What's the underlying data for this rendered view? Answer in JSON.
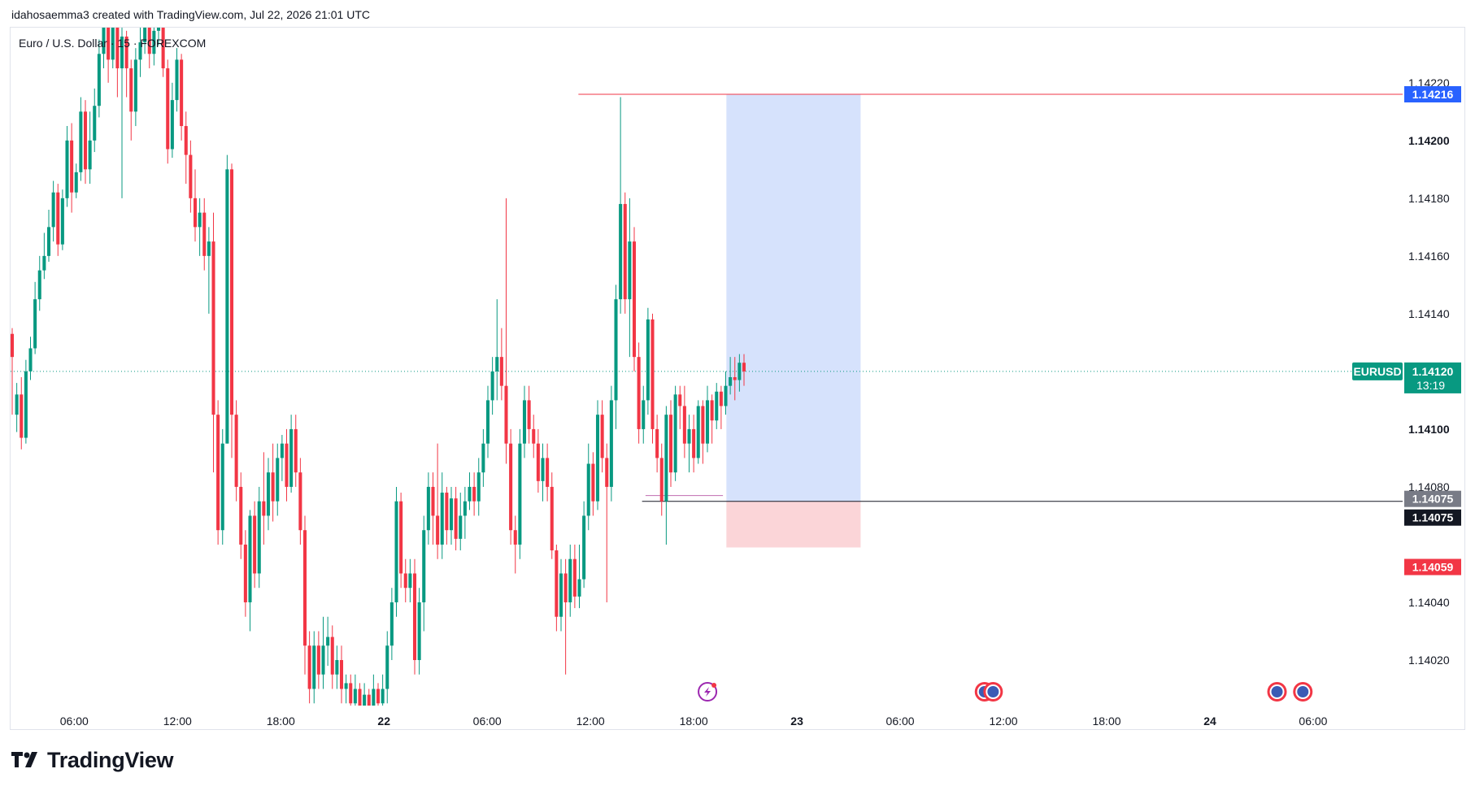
{
  "header": {
    "attribution": "idahosaemma3 created with TradingView.com, Jul 22, 2026 21:01 UTC"
  },
  "footer": {
    "brand": "TradingView"
  },
  "colors": {
    "up": "#089981",
    "down": "#f23645",
    "accent": "#2962ff",
    "stop": "#f23645",
    "stop_fill": "#fbd5d8",
    "target_fill": "#d6e2fc",
    "grey_label": "#787b86",
    "dark_label": "#131722"
  },
  "chart_data": {
    "type": "candlestick",
    "title": "Euro / U.S. Dollar · 15 · FOREXCOM",
    "symbol": "EURUSD",
    "interval": "15",
    "exchange": "FOREXCOM",
    "ylim": [
      1.14005,
      1.14225
    ],
    "y_ticks": [
      "1.14220",
      "1.14200",
      "1.14180",
      "1.14160",
      "1.14140",
      "1.14100",
      "1.14080",
      "1.14040",
      "1.14020"
    ],
    "x_ticks": [
      "06:00",
      "12:00",
      "18:00",
      "22",
      "06:00",
      "12:00",
      "18:00",
      "23",
      "06:00",
      "12:00",
      "18:00",
      "24",
      "06:00"
    ],
    "x_tick_hours": [
      6,
      12,
      18,
      24,
      30,
      36,
      42,
      48,
      54,
      60,
      66,
      72,
      78
    ],
    "x_tick_bold": [
      false,
      false,
      false,
      true,
      false,
      false,
      false,
      true,
      false,
      false,
      false,
      true,
      false
    ],
    "time_range_hours": [
      2.3,
      83.2
    ],
    "current_price": {
      "label": "EURUSD",
      "value": "1.14120",
      "countdown": "13:19",
      "price": 1.1412
    },
    "price_labels": [
      {
        "value": "1.14216",
        "price": 1.14216,
        "color": "#2962ff"
      },
      {
        "value": "1.14075",
        "price": 1.14075,
        "color": "#787b86"
      },
      {
        "value": "1.14075",
        "price": 1.14075,
        "color": "#131722"
      },
      {
        "value": "1.14059",
        "price": 1.14059,
        "color": "#f23645"
      }
    ],
    "levels": [
      {
        "price": 1.14216,
        "from_hour": 35.3,
        "color": "#f23645"
      },
      {
        "price": 1.14075,
        "from_hour": 39.0,
        "color": "#131722"
      },
      {
        "price": 1.14077,
        "from_hour": 39.2,
        "to_hour": 43.7,
        "color": "#c06bb0"
      }
    ],
    "position": {
      "type": "long",
      "from_hour": 43.9,
      "to_hour": 51.7,
      "entry": 1.14075,
      "target": 1.14216,
      "stop": 1.14059
    },
    "events": [
      {
        "hour": 42.8,
        "type": "lightning"
      },
      {
        "hour": 58.9,
        "type": "flag"
      },
      {
        "hour": 59.4,
        "type": "flag"
      },
      {
        "hour": 75.9,
        "type": "flag"
      },
      {
        "hour": 77.4,
        "type": "flag"
      }
    ],
    "candles": [
      [
        1.14133,
        1.14125,
        1.14105,
        1.14135
      ],
      [
        1.14105,
        1.14112,
        1.14099,
        1.14116
      ],
      [
        1.14112,
        1.14097,
        1.14093,
        1.14118
      ],
      [
        1.14097,
        1.1412,
        1.14095,
        1.14124
      ],
      [
        1.1412,
        1.14128,
        1.14117,
        1.14132
      ],
      [
        1.14128,
        1.14145,
        1.14126,
        1.14151
      ],
      [
        1.14145,
        1.14155,
        1.14141,
        1.1416
      ],
      [
        1.14155,
        1.1416,
        1.14152,
        1.14168
      ],
      [
        1.1416,
        1.1417,
        1.14158,
        1.14176
      ],
      [
        1.1417,
        1.14182,
        1.14165,
        1.14186
      ],
      [
        1.14182,
        1.14164,
        1.1416,
        1.14185
      ],
      [
        1.14164,
        1.1418,
        1.14162,
        1.14183
      ],
      [
        1.1418,
        1.142,
        1.14177,
        1.14205
      ],
      [
        1.142,
        1.14182,
        1.14175,
        1.14206
      ],
      [
        1.14182,
        1.14189,
        1.1418,
        1.14192
      ],
      [
        1.14189,
        1.1421,
        1.14186,
        1.14215
      ],
      [
        1.1421,
        1.1419,
        1.14185,
        1.14214
      ],
      [
        1.1419,
        1.142,
        1.14185,
        1.1421
      ],
      [
        1.142,
        1.14212,
        1.14196,
        1.14218
      ],
      [
        1.14212,
        1.1423,
        1.14208,
        1.14235
      ],
      [
        1.1423,
        1.14242,
        1.14225,
        1.1425
      ],
      [
        1.14242,
        1.14228,
        1.1422,
        1.14248
      ],
      [
        1.14228,
        1.14245,
        1.14225,
        1.1425
      ],
      [
        1.14245,
        1.14225,
        1.14215,
        1.1425
      ],
      [
        1.14225,
        1.14236,
        1.1418,
        1.1424
      ],
      [
        1.14236,
        1.14225,
        1.14215,
        1.14238
      ],
      [
        1.14225,
        1.1421,
        1.142,
        1.14228
      ],
      [
        1.1421,
        1.14228,
        1.14205,
        1.14232
      ],
      [
        1.14228,
        1.14234,
        1.14222,
        1.1424
      ],
      [
        1.14234,
        1.14245,
        1.1423,
        1.1425
      ],
      [
        1.14245,
        1.1423,
        1.14225,
        1.1425
      ],
      [
        1.1423,
        1.14238,
        1.14226,
        1.14242
      ],
      [
        1.14238,
        1.14245,
        1.14233,
        1.14252
      ],
      [
        1.14245,
        1.14225,
        1.14222,
        1.1425
      ],
      [
        1.14225,
        1.14197,
        1.14192,
        1.14228
      ],
      [
        1.14197,
        1.14214,
        1.14194,
        1.1422
      ],
      [
        1.14214,
        1.14228,
        1.1421,
        1.14232
      ],
      [
        1.14228,
        1.14205,
        1.142,
        1.1423
      ],
      [
        1.14205,
        1.14195,
        1.14185,
        1.1421
      ],
      [
        1.14195,
        1.1418,
        1.14175,
        1.142
      ],
      [
        1.1418,
        1.1417,
        1.14165,
        1.1419
      ],
      [
        1.1417,
        1.14175,
        1.1416,
        1.1418
      ],
      [
        1.14175,
        1.1416,
        1.14155,
        1.1418
      ],
      [
        1.1416,
        1.14165,
        1.1414,
        1.1417
      ],
      [
        1.14165,
        1.14105,
        1.14085,
        1.14175
      ],
      [
        1.14105,
        1.14065,
        1.1406,
        1.1411
      ],
      [
        1.14065,
        1.14095,
        1.1406,
        1.141
      ],
      [
        1.14095,
        1.1419,
        1.14095,
        1.14195
      ],
      [
        1.1419,
        1.14105,
        1.1409,
        1.14192
      ],
      [
        1.14105,
        1.1408,
        1.14075,
        1.1411
      ],
      [
        1.1408,
        1.1406,
        1.14055,
        1.14085
      ],
      [
        1.1406,
        1.1404,
        1.14035,
        1.14065
      ],
      [
        1.1404,
        1.1407,
        1.1403,
        1.14072
      ],
      [
        1.1407,
        1.1405,
        1.14045,
        1.14075
      ],
      [
        1.1405,
        1.14075,
        1.14045,
        1.1408
      ],
      [
        1.14075,
        1.1407,
        1.1406,
        1.14092
      ],
      [
        1.1407,
        1.14085,
        1.14065,
        1.1409
      ],
      [
        1.14085,
        1.14075,
        1.14068,
        1.14095
      ],
      [
        1.14075,
        1.1409,
        1.1407,
        1.14095
      ],
      [
        1.1409,
        1.14095,
        1.14082,
        1.14098
      ],
      [
        1.14095,
        1.1408,
        1.14075,
        1.141
      ],
      [
        1.1408,
        1.141,
        1.14078,
        1.14105
      ],
      [
        1.141,
        1.14085,
        1.1408,
        1.14105
      ],
      [
        1.14085,
        1.14065,
        1.1406,
        1.1409
      ],
      [
        1.14065,
        1.14025,
        1.14015,
        1.1407
      ],
      [
        1.14025,
        1.1401,
        1.14005,
        1.1403
      ],
      [
        1.1401,
        1.14025,
        1.14005,
        1.1403
      ],
      [
        1.14025,
        1.14015,
        1.1401,
        1.1403
      ],
      [
        1.14015,
        1.14025,
        1.1401,
        1.14035
      ],
      [
        1.14025,
        1.14028,
        1.14018,
        1.14035
      ],
      [
        1.14028,
        1.14015,
        1.1401,
        1.14032
      ],
      [
        1.14015,
        1.1402,
        1.1401,
        1.14025
      ],
      [
        1.1402,
        1.1401,
        1.14005,
        1.14025
      ],
      [
        1.1401,
        1.14012,
        1.14005,
        1.14015
      ],
      [
        1.14012,
        1.14005,
        1.14002,
        1.14015
      ],
      [
        1.14005,
        1.1401,
        1.14003,
        1.14015
      ],
      [
        1.1401,
        1.14003,
        1.14,
        1.14012
      ],
      [
        1.14003,
        1.14008,
        1.14,
        1.14012
      ],
      [
        1.14008,
        1.14002,
        1.14,
        1.1401
      ],
      [
        1.14002,
        1.1401,
        1.14,
        1.14015
      ],
      [
        1.1401,
        1.14005,
        1.14,
        1.14012
      ],
      [
        1.14005,
        1.1401,
        1.14003,
        1.14015
      ],
      [
        1.1401,
        1.14025,
        1.14005,
        1.1403
      ],
      [
        1.14025,
        1.1404,
        1.1402,
        1.14045
      ],
      [
        1.1404,
        1.14075,
        1.14035,
        1.1408
      ],
      [
        1.14075,
        1.1405,
        1.14045,
        1.14078
      ],
      [
        1.1405,
        1.14045,
        1.1404,
        1.14055
      ],
      [
        1.14045,
        1.1405,
        1.1404,
        1.14055
      ],
      [
        1.1405,
        1.1402,
        1.14015,
        1.14055
      ],
      [
        1.1402,
        1.1404,
        1.14015,
        1.14045
      ],
      [
        1.1404,
        1.14065,
        1.1403,
        1.1407
      ],
      [
        1.14065,
        1.1408,
        1.1406,
        1.14085
      ],
      [
        1.1408,
        1.1407,
        1.1406,
        1.14085
      ],
      [
        1.1407,
        1.1406,
        1.14055,
        1.14095
      ],
      [
        1.1406,
        1.14078,
        1.14055,
        1.14085
      ],
      [
        1.14078,
        1.14065,
        1.1406,
        1.1408
      ],
      [
        1.14065,
        1.14076,
        1.1406,
        1.1408
      ],
      [
        1.14076,
        1.14062,
        1.14058,
        1.1408
      ],
      [
        1.14062,
        1.1407,
        1.14058,
        1.14078
      ],
      [
        1.1407,
        1.14075,
        1.14062,
        1.1408
      ],
      [
        1.14075,
        1.1408,
        1.14072,
        1.14085
      ],
      [
        1.1408,
        1.14075,
        1.1407,
        1.14085
      ],
      [
        1.14075,
        1.14085,
        1.1407,
        1.1409
      ],
      [
        1.14085,
        1.14095,
        1.1408,
        1.141
      ],
      [
        1.14095,
        1.1411,
        1.1409,
        1.14115
      ],
      [
        1.1411,
        1.1412,
        1.14105,
        1.14125
      ],
      [
        1.1412,
        1.14125,
        1.1411,
        1.14145
      ],
      [
        1.14125,
        1.14115,
        1.1411,
        1.14135
      ],
      [
        1.14115,
        1.14095,
        1.14088,
        1.1418
      ],
      [
        1.14095,
        1.14065,
        1.1406,
        1.141
      ],
      [
        1.14065,
        1.1406,
        1.1405,
        1.1407
      ],
      [
        1.1406,
        1.14095,
        1.14055,
        1.141
      ],
      [
        1.14095,
        1.1411,
        1.1409,
        1.14115
      ],
      [
        1.1411,
        1.141,
        1.14095,
        1.14115
      ],
      [
        1.141,
        1.14095,
        1.1409,
        1.14105
      ],
      [
        1.14095,
        1.14082,
        1.14078,
        1.141
      ],
      [
        1.14082,
        1.1409,
        1.14075,
        1.14095
      ],
      [
        1.1409,
        1.1408,
        1.14075,
        1.14095
      ],
      [
        1.1408,
        1.14058,
        1.14055,
        1.14085
      ],
      [
        1.14058,
        1.14035,
        1.1403,
        1.1406
      ],
      [
        1.14035,
        1.1405,
        1.1403,
        1.14055
      ],
      [
        1.1405,
        1.1404,
        1.14015,
        1.14055
      ],
      [
        1.1404,
        1.14055,
        1.14035,
        1.1406
      ],
      [
        1.14055,
        1.14042,
        1.14038,
        1.1406
      ],
      [
        1.14042,
        1.14048,
        1.14038,
        1.1406
      ],
      [
        1.14048,
        1.1407,
        1.14045,
        1.14075
      ],
      [
        1.1407,
        1.14088,
        1.14065,
        1.14095
      ],
      [
        1.14088,
        1.14075,
        1.1407,
        1.14092
      ],
      [
        1.14075,
        1.14105,
        1.14072,
        1.1411
      ],
      [
        1.14105,
        1.1409,
        1.14085,
        1.1411
      ],
      [
        1.1409,
        1.1408,
        1.1404,
        1.14095
      ],
      [
        1.1408,
        1.1411,
        1.14075,
        1.14115
      ],
      [
        1.1411,
        1.14145,
        1.141,
        1.1415
      ],
      [
        1.14145,
        1.14178,
        1.1414,
        1.14215
      ],
      [
        1.14178,
        1.14145,
        1.1414,
        1.14182
      ],
      [
        1.14145,
        1.14165,
        1.14125,
        1.1418
      ],
      [
        1.14165,
        1.14125,
        1.1412,
        1.1417
      ],
      [
        1.14125,
        1.141,
        1.14095,
        1.1413
      ],
      [
        1.141,
        1.1411,
        1.14095,
        1.14115
      ],
      [
        1.1411,
        1.14138,
        1.14105,
        1.14142
      ],
      [
        1.14138,
        1.141,
        1.14095,
        1.1414
      ],
      [
        1.141,
        1.1409,
        1.14085,
        1.14105
      ],
      [
        1.1409,
        1.14075,
        1.1407,
        1.14095
      ],
      [
        1.14075,
        1.14105,
        1.1406,
        1.14108
      ],
      [
        1.14105,
        1.14085,
        1.1408,
        1.1411
      ],
      [
        1.14085,
        1.14112,
        1.14082,
        1.14115
      ],
      [
        1.14112,
        1.14108,
        1.141,
        1.14115
      ],
      [
        1.14108,
        1.14095,
        1.1409,
        1.14115
      ],
      [
        1.14095,
        1.141,
        1.14085,
        1.14105
      ],
      [
        1.141,
        1.1409,
        1.14085,
        1.14105
      ],
      [
        1.1409,
        1.14108,
        1.14088,
        1.1411
      ],
      [
        1.14108,
        1.14095,
        1.14088,
        1.1411
      ],
      [
        1.14095,
        1.1411,
        1.14092,
        1.14115
      ],
      [
        1.1411,
        1.14103,
        1.14095,
        1.14112
      ],
      [
        1.14103,
        1.14113,
        1.141,
        1.14116
      ],
      [
        1.14113,
        1.14108,
        1.141,
        1.14115
      ],
      [
        1.14108,
        1.14115,
        1.14105,
        1.1412
      ],
      [
        1.14115,
        1.14118,
        1.14112,
        1.14125
      ],
      [
        1.14118,
        1.14117,
        1.1411,
        1.14125
      ],
      [
        1.14117,
        1.14123,
        1.14113,
        1.14126
      ],
      [
        1.14123,
        1.1412,
        1.14115,
        1.14126
      ]
    ]
  }
}
